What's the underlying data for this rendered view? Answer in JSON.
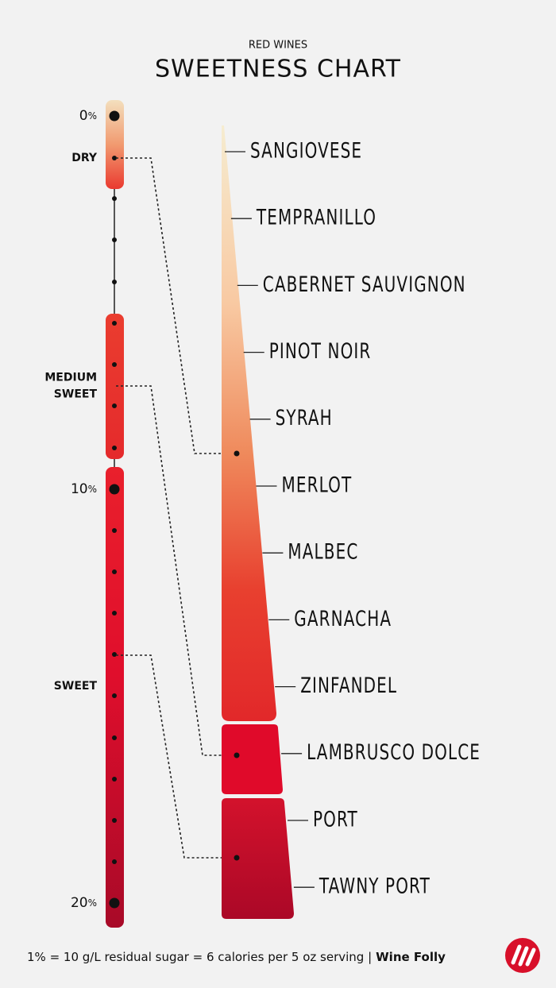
{
  "header": {
    "subtitle": "RED WINES",
    "title": "SWEETNESS CHART"
  },
  "scale": {
    "marks": [
      {
        "number": "0",
        "unit": "%"
      },
      {
        "number": "10",
        "unit": "%"
      },
      {
        "number": "20",
        "unit": "%"
      }
    ],
    "levels": [
      {
        "lines": [
          "DRY"
        ]
      },
      {
        "lines": [
          "MEDIUM",
          "SWEET"
        ]
      },
      {
        "lines": [
          "SWEET"
        ]
      }
    ]
  },
  "wines": [
    "SANGIOVESE",
    "TEMPRANILLO",
    "CABERNET SAUVIGNON",
    "PINOT NOIR",
    "SYRAH",
    "MERLOT",
    "MALBEC",
    "GARNACHA",
    "ZINFANDEL",
    "LAMBRUSCO DOLCE",
    "PORT",
    "TAWNY PORT"
  ],
  "footer": {
    "note": "1% = 10 g/L residual sugar = 6 calories per 5 oz serving |",
    "brand": "Wine Folly"
  }
}
